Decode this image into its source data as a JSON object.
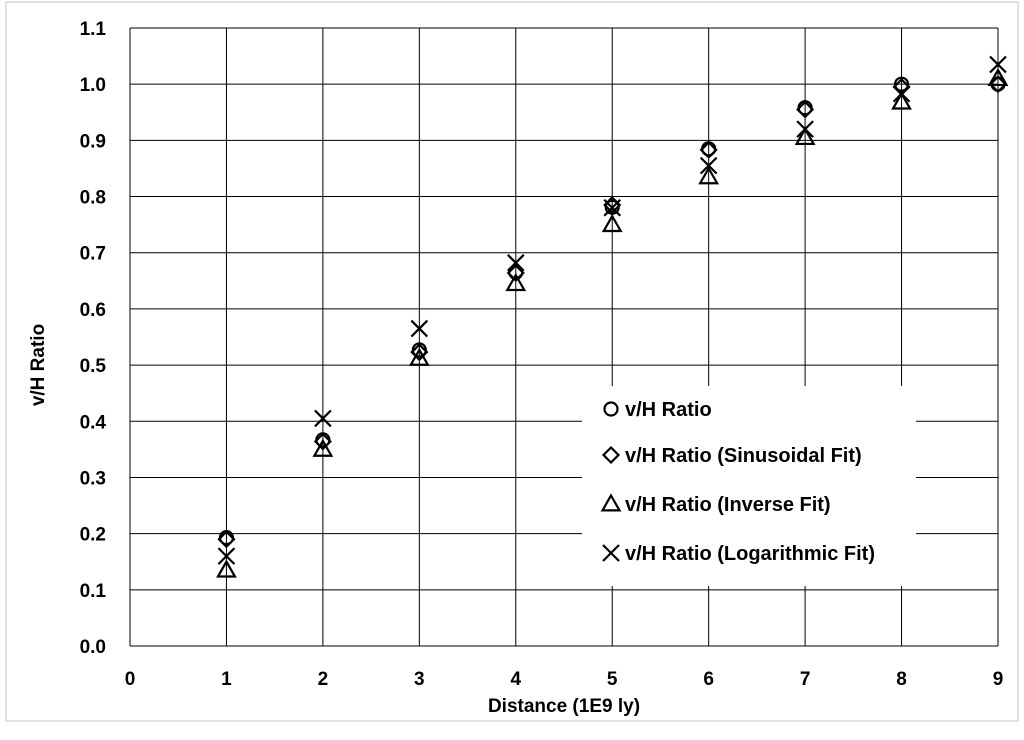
{
  "chart_data": {
    "type": "scatter",
    "title": "",
    "xlabel": "Distance (1E9 ly)",
    "ylabel": "v/H Ratio",
    "xlim": [
      0,
      9
    ],
    "ylim": [
      0,
      1.1
    ],
    "x_ticks": [
      0,
      1,
      2,
      3,
      4,
      5,
      6,
      7,
      8,
      9
    ],
    "y_ticks": [
      "0.0",
      "0.1",
      "0.2",
      "0.3",
      "0.4",
      "0.5",
      "0.6",
      "0.7",
      "0.8",
      "0.9",
      "1.0",
      "1.1"
    ],
    "grid": true,
    "legend_position": "lower-right",
    "series": [
      {
        "name": "v/H Ratio",
        "marker": "circle",
        "x": [
          1,
          2,
          3,
          4,
          5,
          6,
          7,
          8,
          9
        ],
        "y": [
          0.193,
          0.367,
          0.527,
          0.665,
          0.781,
          0.885,
          0.958,
          1.0,
          1.0
        ]
      },
      {
        "name": "v/H Ratio (Sinusoidal Fit)",
        "marker": "diamond",
        "x": [
          1,
          2,
          3,
          4,
          5,
          6,
          7,
          8,
          9
        ],
        "y": [
          0.19,
          0.364,
          0.523,
          0.664,
          0.785,
          0.883,
          0.955,
          0.995,
          1.0
        ]
      },
      {
        "name": "v/H Ratio (Inverse Fit)",
        "marker": "triangle",
        "x": [
          1,
          2,
          3,
          4,
          5,
          6,
          7,
          8,
          9
        ],
        "y": [
          0.135,
          0.35,
          0.512,
          0.645,
          0.75,
          0.835,
          0.905,
          0.968,
          1.01
        ]
      },
      {
        "name": "v/H Ratio (Logarithmic Fit)",
        "marker": "x",
        "x": [
          1,
          2,
          3,
          4,
          5,
          6,
          7,
          8,
          9
        ],
        "y": [
          0.16,
          0.405,
          0.565,
          0.682,
          0.78,
          0.855,
          0.92,
          0.983,
          1.035
        ]
      }
    ],
    "colors": {
      "marker": "#000000",
      "grid": "#000000",
      "background": "#ffffff",
      "border": "#d9d9d9"
    }
  }
}
